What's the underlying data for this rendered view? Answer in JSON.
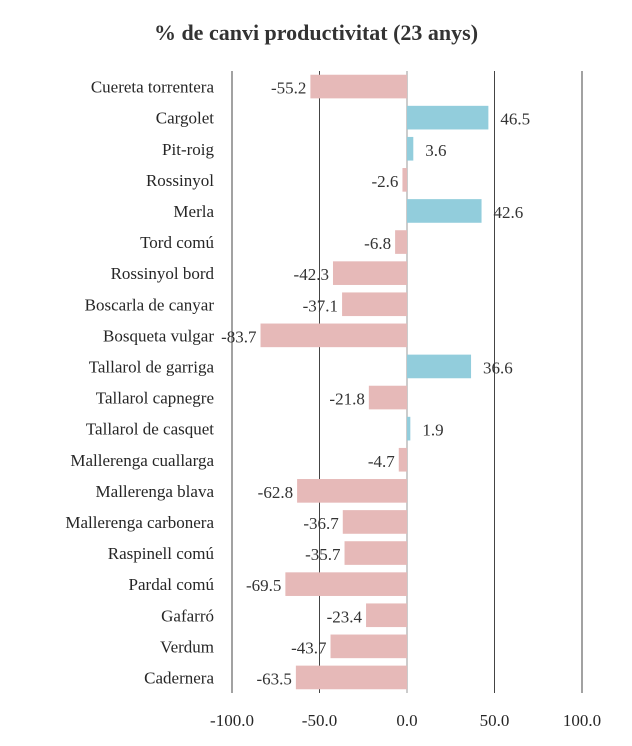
{
  "chart_data": {
    "type": "bar",
    "orientation": "horizontal",
    "title": "% de canvi productivitat (23 anys)",
    "xlabel": "",
    "ylabel": "",
    "xlim": [
      -100,
      100
    ],
    "xticks": [
      "-100.0",
      "-50.0",
      "0.0",
      "50.0",
      "100.0"
    ],
    "grid": true,
    "categories": [
      "Cuereta torrentera",
      "Cargolet",
      "Pit-roig",
      "Rossinyol",
      "Merla",
      "Tord comú",
      "Rossinyol bord",
      "Boscarla de canyar",
      "Bosqueta vulgar",
      "Tallarol de garriga",
      "Tallarol capnegre",
      "Tallarol de casquet",
      "Mallerenga cuallarga",
      "Mallerenga blava",
      "Mallerenga carbonera",
      "Raspinell comú",
      "Pardal comú",
      "Gafarró",
      "Verdum",
      "Cadernera"
    ],
    "values": [
      -55.2,
      46.5,
      3.6,
      -2.6,
      42.6,
      -6.8,
      -42.3,
      -37.1,
      -83.7,
      36.6,
      -21.8,
      1.9,
      -4.7,
      -62.8,
      -36.7,
      -35.7,
      -69.5,
      -23.4,
      -43.7,
      -63.5
    ],
    "labels": [
      "-55.2",
      "46.5",
      "3.6",
      "-2.6",
      "42.6",
      "-6.8",
      "-42.3",
      "-37.1",
      "-83.7",
      "36.6",
      "-21.8",
      "1.9",
      "-4.7",
      "-62.8",
      "-36.7",
      "-35.7",
      "-69.5",
      "-23.4",
      "-43.7",
      "-63.5"
    ],
    "colors": {
      "positive": "#92cddc",
      "negative": "#e6b9b8"
    }
  }
}
